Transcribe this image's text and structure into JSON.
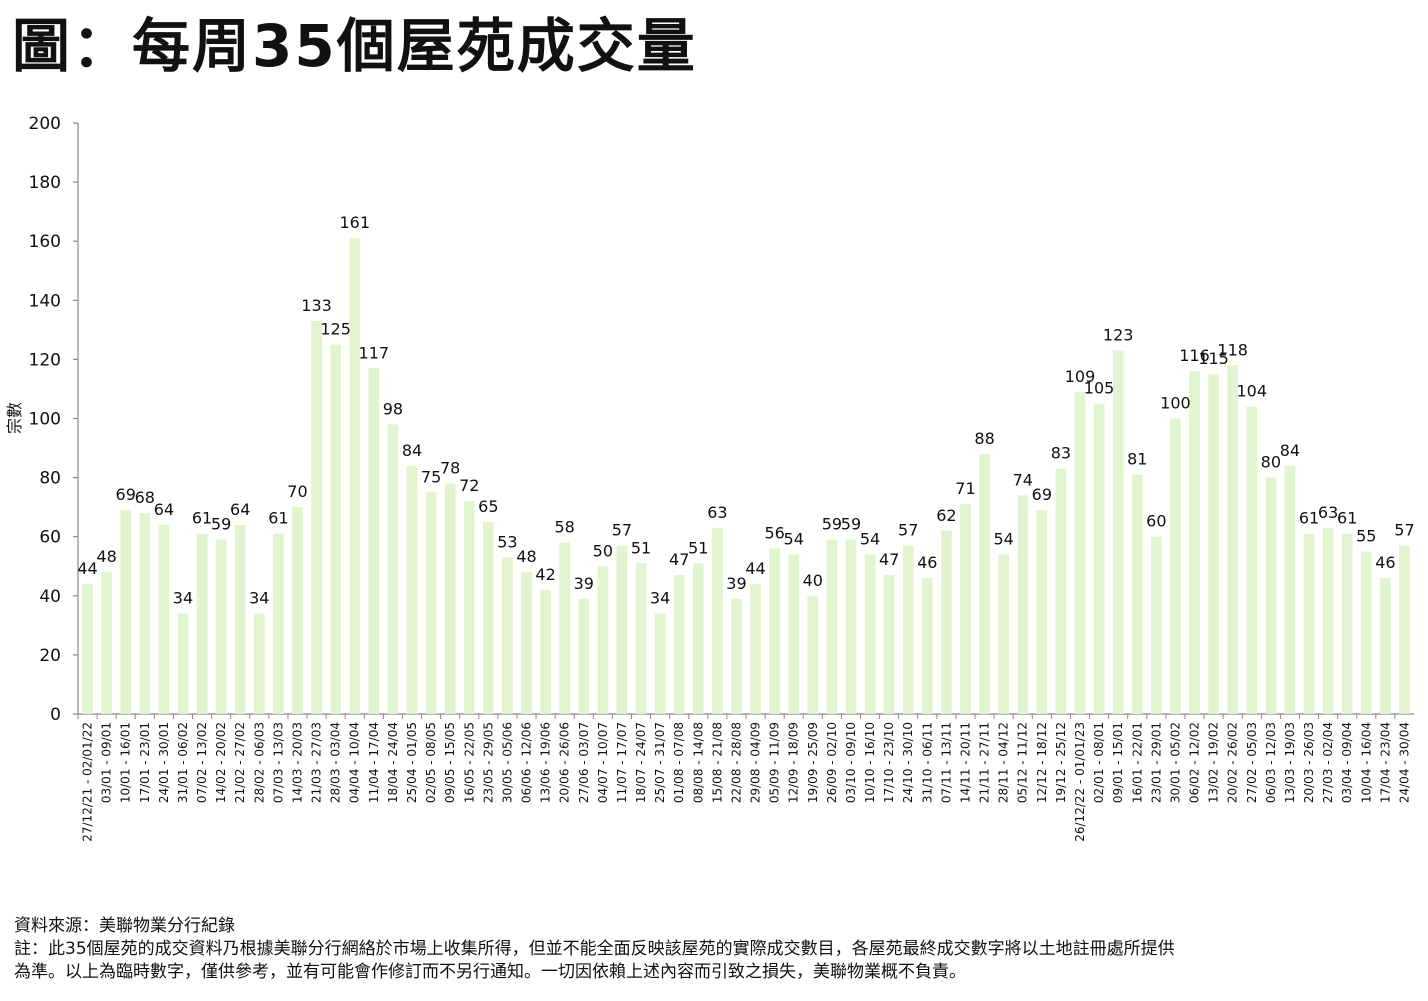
{
  "title": "圖：每周35個屋苑成交量",
  "colors": {
    "bar": "#e2f3cf",
    "axis": "#888888",
    "text": "#111111"
  },
  "chart_data": {
    "type": "bar",
    "ylabel": "宗數",
    "xlabel": "",
    "ylim": [
      0,
      200
    ],
    "yticks": [
      0,
      20,
      40,
      60,
      80,
      100,
      120,
      140,
      160,
      180,
      200
    ],
    "grid": false,
    "categories": [
      "27/12/21 - 02/01/22",
      "03/01 - 09/01",
      "10/01 - 16/01",
      "17/01 - 23/01",
      "24/01 - 30/01",
      "31/01 - 06/02",
      "07/02 - 13/02",
      "14/02 - 20/02",
      "21/02 - 27/02",
      "28/02 - 06/03",
      "07/03 - 13/03",
      "14/03 - 20/03",
      "21/03 - 27/03",
      "28/03 - 03/04",
      "04/04 - 10/04",
      "11/04 - 17/04",
      "18/04 - 24/04",
      "25/04 - 01/05",
      "02/05 - 08/05",
      "09/05 - 15/05",
      "16/05 - 22/05",
      "23/05 - 29/05",
      "30/05 - 05/06",
      "06/06 - 12/06",
      "13/06 - 19/06",
      "20/06 - 26/06",
      "27/06 - 03/07",
      "04/07 - 10/07",
      "11/07 - 17/07",
      "18/07 - 24/07",
      "25/07 - 31/07",
      "01/08 - 07/08",
      "08/08 - 14/08",
      "15/08 - 21/08",
      "22/08 - 28/08",
      "29/08 - 04/09",
      "05/09 - 11/09",
      "12/09 - 18/09",
      "19/09 - 25/09",
      "26/09 - 02/10",
      "03/10 - 09/10",
      "10/10 - 16/10",
      "17/10 - 23/10",
      "24/10 - 30/10",
      "31/10 - 06/11",
      "07/11 - 13/11",
      "14/11 - 20/11",
      "21/11 - 27/11",
      "28/11 - 04/12",
      "05/12 - 11/12",
      "12/12 - 18/12",
      "19/12 - 25/12",
      "26/12/22 - 01/01/23",
      "02/01 - 08/01",
      "09/01 - 15/01",
      "16/01 - 22/01",
      "23/01 - 29/01",
      "30/01 - 05/02",
      "06/02 - 12/02",
      "13/02 - 19/02",
      "20/02 - 26/02",
      "27/02 - 05/03",
      "06/03 - 12/03",
      "13/03 - 19/03",
      "20/03 - 26/03",
      "27/03 - 02/04",
      "03/04 - 09/04",
      "10/04 - 16/04",
      "17/04 - 23/04",
      "24/04 - 30/04"
    ],
    "values": [
      44,
      48,
      69,
      68,
      64,
      34,
      61,
      59,
      64,
      34,
      61,
      70,
      133,
      125,
      161,
      117,
      98,
      84,
      75,
      78,
      72,
      65,
      53,
      48,
      42,
      58,
      39,
      50,
      57,
      51,
      34,
      47,
      51,
      63,
      39,
      44,
      56,
      54,
      40,
      59,
      59,
      54,
      47,
      57,
      46,
      62,
      71,
      88,
      54,
      74,
      69,
      83,
      109,
      105,
      123,
      81,
      60,
      100,
      116,
      115,
      118,
      104,
      80,
      84,
      61,
      63,
      61,
      55,
      46,
      57
    ]
  },
  "footer": {
    "source": "資料來源：美聯物業分行紀錄",
    "note1": "註：此35個屋苑的成交資料乃根據美聯分行網絡於市場上收集所得，但並不能全面反映該屋苑的實際成交數目，各屋苑最終成交數字將以土地註冊處所提供",
    "note2": "為準。以上為臨時數字，僅供參考，並有可能會作修訂而不另行通知。一切因依賴上述內容而引致之損失，美聯物業概不負責。"
  }
}
